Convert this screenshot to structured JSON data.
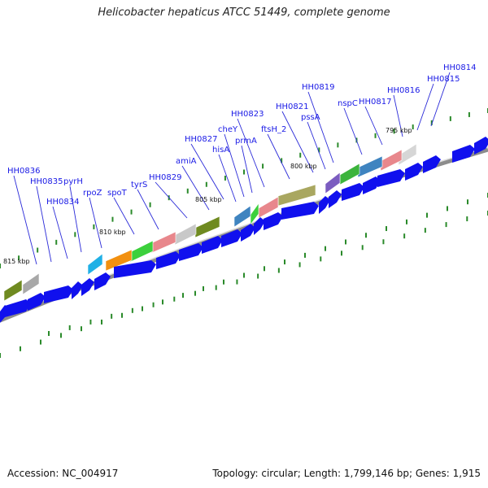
{
  "title": "Helicobacter hepaticus ATCC 51449, complete genome",
  "footer": {
    "accession": "Accession: NC_004917",
    "summary": "Topology: circular; Length: 1,799,146 bp; Genes: 1,915"
  },
  "colors": {
    "gene_arrow": "#1010ee",
    "label": "#1a1ae6",
    "leader_line": "#2a2ad8",
    "tick": "#2a8a2a",
    "backbone": "#8c8c8c"
  },
  "scale_labels": [
    "795 kbp",
    "800 kbp",
    "805 kbp",
    "810 kbp",
    "815 kbp"
  ],
  "gene_labels": [
    "HH0814",
    "HH0815",
    "HH0816",
    "HH0817",
    "nspC",
    "HH0819",
    "pssA",
    "HH0821",
    "ftsH_2",
    "HH0823",
    "prmA",
    "cheY",
    "hisA",
    "HH0827",
    "amiA",
    "HH0829",
    "tyrS",
    "spoT",
    "rpoZ",
    "pyrH",
    "HH0834",
    "HH0835",
    "HH0836"
  ],
  "feature_colors": [
    "#d6d6d6",
    "#e8878c",
    "#3f84c0",
    "#3cb43c",
    "#7b5cc0",
    "#a9a760",
    "#e8878c",
    "#3cd03c",
    "#3f84c0",
    "#6f8a20",
    "#c8c8c8",
    "#e8878c",
    "#3cd03c",
    "#f29010",
    "#20b0e6",
    "#a8a8a8",
    "#6f8a20"
  ]
}
